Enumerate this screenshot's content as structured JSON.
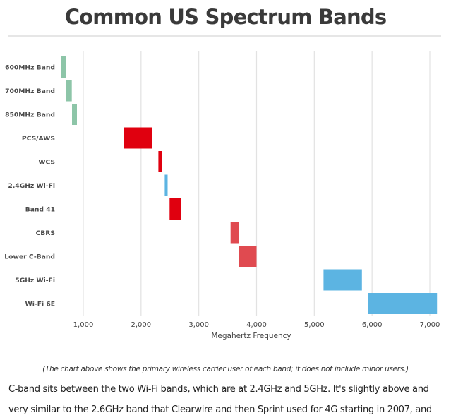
{
  "title": "Common US Spectrum Bands",
  "chart_data": {
    "type": "bar",
    "subtype": "floating-range-horizontal",
    "title": "Common US Spectrum Bands",
    "xlabel": "Megahertz Frequency",
    "ylabel": "",
    "xlim": [
      0,
      7150
    ],
    "xticks": [
      1000,
      2000,
      3000,
      4000,
      5000,
      6000,
      7000
    ],
    "xtick_labels": [
      "1,000",
      "2,000",
      "3,000",
      "4,000",
      "5,000",
      "6,000",
      "7,000"
    ],
    "grid": true,
    "legend": "none",
    "categories": [
      "600MHz Band",
      "700MHz Band",
      "850MHz Band",
      "PCS/AWS",
      "WCS",
      "2.4GHz Wi-Fi",
      "Band 41",
      "CBRS",
      "Lower C-Band",
      "5GHz Wi-Fi",
      "Wi-Fi 6E"
    ],
    "ranges": [
      {
        "start": 610,
        "end": 695,
        "color": "#8dc5a8"
      },
      {
        "start": 700,
        "end": 800,
        "color": "#8dc5a8"
      },
      {
        "start": 805,
        "end": 890,
        "color": "#8dc5a8"
      },
      {
        "start": 1705,
        "end": 2195,
        "color": "#e0000f"
      },
      {
        "start": 2300,
        "end": 2360,
        "color": "#e0000f"
      },
      {
        "start": 2410,
        "end": 2460,
        "color": "#5cb4e2"
      },
      {
        "start": 2495,
        "end": 2690,
        "color": "#e0000f"
      },
      {
        "start": 3550,
        "end": 3690,
        "color": "#e04a50"
      },
      {
        "start": 3700,
        "end": 4000,
        "color": "#e04a50"
      },
      {
        "start": 5160,
        "end": 5825,
        "color": "#5cb4e2"
      },
      {
        "start": 5925,
        "end": 7125,
        "color": "#5cb4e2"
      }
    ]
  },
  "caption": "(The chart above shows the primary wireless carrier user of each band; it does not include minor users.)",
  "paragraph": {
    "lines": [
      "C-band sits between the two Wi-Fi bands, which are at 2.4GHz and 5GHz. It's slightly above and",
      "very similar to the 2.6GHz band that Clearwire and then Sprint used for 4G starting in 2007, and"
    ]
  }
}
